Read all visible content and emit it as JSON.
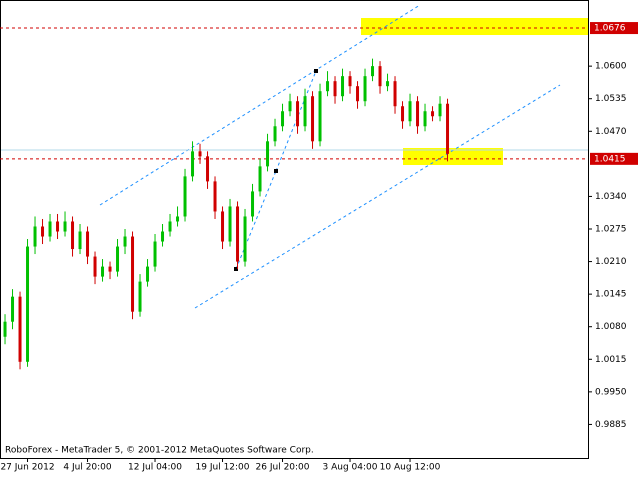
{
  "chart_data": {
    "type": "candlestick",
    "footer": "RoboForex - MetaTrader 5, © 2001-2012 MetaQuotes Software Corp.",
    "up_color": "#00c000",
    "down_color": "#d00000",
    "open": [
      1.006,
      1.009,
      1.014,
      1.001,
      1.024,
      1.028,
      1.026,
      1.029,
      1.027,
      1.029,
      1.0235,
      1.027,
      1.022,
      1.018,
      1.02,
      1.019,
      1.024,
      1.026,
      1.011,
      1.017,
      1.02,
      1.025,
      1.027,
      1.029,
      1.03,
      1.038,
      1.043,
      1.042,
      1.037,
      1.031,
      1.025,
      1.032,
      1.021,
      1.03,
      1.035,
      1.04,
      1.045,
      1.048,
      1.051,
      1.053,
      1.048,
      1.054,
      1.045,
      1.055,
      1.057,
      1.054,
      1.058,
      1.056,
      1.053,
      1.058,
      1.06,
      1.056,
      1.057,
      1.052,
      1.049,
      1.053,
      1.048,
      1.051,
      1.05,
      1.0525
    ],
    "high": [
      1.0105,
      1.0155,
      1.015,
      1.0255,
      1.03,
      1.0295,
      1.0305,
      1.0305,
      1.031,
      1.03,
      1.0285,
      1.028,
      1.023,
      1.0215,
      1.021,
      1.0255,
      1.0275,
      1.027,
      1.0185,
      1.0215,
      1.0265,
      1.0285,
      1.0305,
      1.032,
      1.0395,
      1.045,
      1.0445,
      1.043,
      1.038,
      1.032,
      1.0335,
      1.033,
      1.0315,
      1.0365,
      1.0415,
      1.0465,
      1.0495,
      1.0525,
      1.0545,
      1.054,
      1.0555,
      1.055,
      1.0565,
      1.059,
      1.058,
      1.0595,
      1.059,
      1.057,
      1.0595,
      1.0615,
      1.061,
      1.0585,
      1.058,
      1.053,
      1.0545,
      1.054,
      1.0525,
      1.052,
      1.054,
      1.0535
    ],
    "low": [
      1.0045,
      1.0075,
      0.9995,
      1.0,
      1.0225,
      1.0245,
      1.025,
      1.0255,
      1.026,
      1.022,
      1.0225,
      1.0205,
      1.0165,
      1.017,
      1.0175,
      1.018,
      1.0225,
      1.0095,
      1.01,
      1.016,
      1.019,
      1.024,
      1.026,
      1.028,
      1.029,
      1.037,
      1.0405,
      1.0355,
      1.0295,
      1.0235,
      1.024,
      1.0195,
      1.02,
      1.029,
      1.034,
      1.039,
      1.044,
      1.047,
      1.05,
      1.0465,
      1.047,
      1.0435,
      1.044,
      1.054,
      1.0525,
      1.053,
      1.0545,
      1.0515,
      1.052,
      1.057,
      1.0545,
      1.055,
      1.0505,
      1.0475,
      1.048,
      1.0465,
      1.047,
      1.049,
      1.049,
      1.041
    ],
    "close": [
      1.009,
      1.014,
      1.001,
      1.024,
      1.028,
      1.026,
      1.029,
      1.027,
      1.029,
      1.0235,
      1.027,
      1.022,
      1.018,
      1.02,
      1.019,
      1.024,
      1.026,
      1.011,
      1.017,
      1.02,
      1.025,
      1.027,
      1.029,
      1.03,
      1.038,
      1.043,
      1.042,
      1.037,
      1.031,
      1.025,
      1.032,
      1.021,
      1.03,
      1.035,
      1.04,
      1.045,
      1.048,
      1.051,
      1.053,
      1.048,
      1.054,
      1.045,
      1.055,
      1.057,
      1.054,
      1.058,
      1.056,
      1.053,
      1.058,
      1.06,
      1.056,
      1.057,
      1.052,
      1.049,
      1.053,
      1.048,
      1.051,
      1.05,
      1.0525,
      1.0425
    ],
    "xlim": [
      -0.67,
      77.73
    ],
    "xticks": [
      {
        "value": 3,
        "label": "27 Jun 2012"
      },
      {
        "value": 11,
        "label": "4 Jul 20:00"
      },
      {
        "value": 20,
        "label": "12 Jul 04:00"
      },
      {
        "value": 29,
        "label": "19 Jul 12:00"
      },
      {
        "value": 37,
        "label": "26 Jul 20:00"
      },
      {
        "value": 46,
        "label": "3 Aug 04:00"
      },
      {
        "value": 54,
        "label": "10 Aug 12:00"
      }
    ],
    "ylim": [
      0.9818,
      1.0732
    ],
    "yticks": [
      {
        "value": 0.9885,
        "label": "0.9885"
      },
      {
        "value": 0.995,
        "label": "0.9950"
      },
      {
        "value": 1.0015,
        "label": "1.0015"
      },
      {
        "value": 1.008,
        "label": "1.0080"
      },
      {
        "value": 1.0145,
        "label": "1.0145"
      },
      {
        "value": 1.021,
        "label": "1.0210"
      },
      {
        "value": 1.0275,
        "label": "1.0275"
      },
      {
        "value": 1.034,
        "label": "1.0340"
      },
      {
        "value": 1.047,
        "label": "1.0470"
      },
      {
        "value": 1.0535,
        "label": "1.0535"
      },
      {
        "value": 1.06,
        "label": "1.0600"
      }
    ],
    "price_lines": [
      {
        "value": 1.0676,
        "label": "1.0676",
        "color": "#d00000"
      },
      {
        "value": 1.0415,
        "label": "1.0415",
        "color": "#d00000"
      }
    ]
  }
}
